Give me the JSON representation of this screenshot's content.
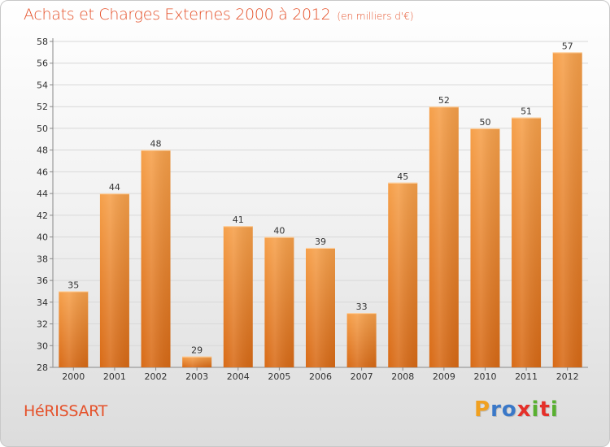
{
  "title": "Achats et Charges Externes 2000 à 2012",
  "subtitle": "(en milliers d'€)",
  "commune": "HéRISSART",
  "logo": {
    "letters": [
      "P",
      "r",
      "o",
      "x",
      "i",
      "t",
      "i"
    ],
    "colors": [
      "#f0a020",
      "#3a78c8",
      "#3a78c8",
      "#e5302a",
      "#58b030",
      "#e5302a",
      "#58b030"
    ]
  },
  "colors": {
    "accent": "#e5512a",
    "bar_light": "#f6a04a",
    "bar_dark": "#d86a16"
  },
  "chart_data": {
    "type": "bar",
    "categories": [
      "2000",
      "2001",
      "2002",
      "2003",
      "2004",
      "2005",
      "2006",
      "2007",
      "2008",
      "2009",
      "2010",
      "2011",
      "2012"
    ],
    "values": [
      35,
      44,
      48,
      29,
      41,
      40,
      39,
      33,
      45,
      52,
      50,
      51,
      57
    ],
    "ylim": [
      28,
      58
    ],
    "yticks": [
      28,
      30,
      32,
      34,
      36,
      38,
      40,
      42,
      44,
      46,
      48,
      50,
      52,
      54,
      56,
      58
    ],
    "grid": true,
    "data_labels": true
  }
}
